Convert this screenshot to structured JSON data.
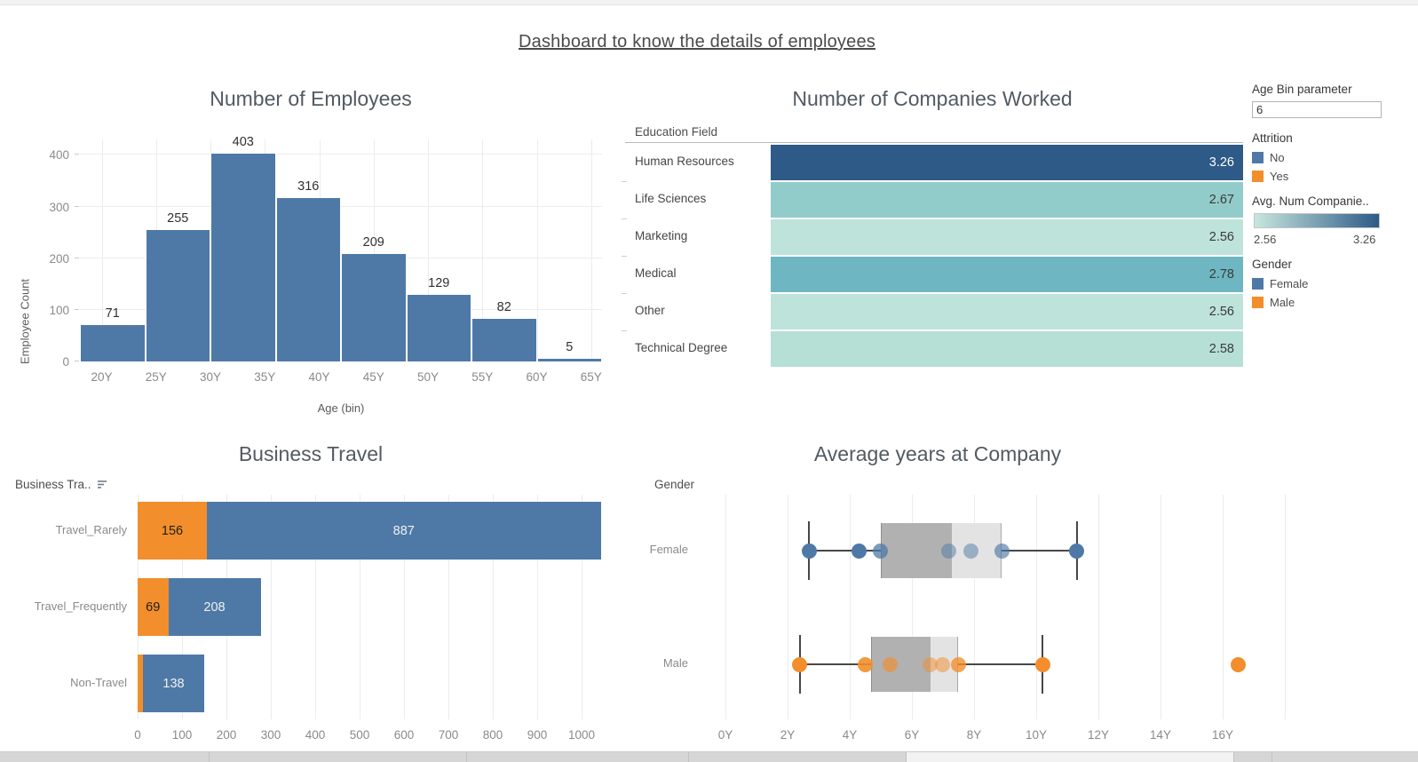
{
  "window": {
    "title": "Dashboard to know the details of employees"
  },
  "palette": {
    "blue": "#4e79a7",
    "orange": "#f28e2b",
    "grid": "#ececec",
    "axis_text": "#8a8a8a",
    "box_dark": "#b1b1b1",
    "box_light": "#e3e3e3"
  },
  "sidebar": {
    "age_bin": {
      "label": "Age Bin parameter",
      "value": "6"
    },
    "attrition": {
      "title": "Attrition",
      "items": [
        {
          "label": "No",
          "color": "#4e79a7"
        },
        {
          "label": "Yes",
          "color": "#f28e2b"
        }
      ]
    },
    "avg_num": {
      "title": "Avg. Num Companie..",
      "min_label": "2.56",
      "max_label": "3.26",
      "gradient_from": "#c7e7de",
      "gradient_to": "#2d5a87"
    },
    "gender": {
      "title": "Gender",
      "items": [
        {
          "label": "Female",
          "color": "#4e79a7"
        },
        {
          "label": "Male",
          "color": "#f28e2b"
        }
      ]
    }
  },
  "chart_data": [
    {
      "type": "bar",
      "title": "Number of Employees",
      "xlabel": "Age (bin)",
      "ylabel": "Employee Count",
      "bin_start": 18,
      "bin_width": 6,
      "values": [
        71,
        255,
        403,
        316,
        209,
        129,
        82,
        5
      ],
      "x_domain": [
        18,
        66
      ],
      "x_tick_years": [
        20,
        25,
        30,
        35,
        40,
        45,
        50,
        55,
        60,
        65
      ],
      "x_tick_labels": [
        "20Y",
        "25Y",
        "30Y",
        "35Y",
        "40Y",
        "45Y",
        "50Y",
        "55Y",
        "60Y",
        "65Y"
      ],
      "y_ticks": [
        0,
        100,
        200,
        300,
        400
      ],
      "ylim": [
        0,
        430
      ],
      "bar_color": "#4e79a7",
      "grid": true
    },
    {
      "type": "bar",
      "title": "Number of Companies Worked",
      "row_header": "Education Field",
      "note": "all bars full-length, colored by average value",
      "rows": [
        {
          "label": "Human Resources",
          "value": "3.26",
          "color": "#2d5a87",
          "text_color": "#ffffff"
        },
        {
          "label": "Life Sciences",
          "value": "2.67",
          "color": "#92ccca",
          "text_color": "#3a3a3a"
        },
        {
          "label": "Marketing",
          "value": "2.56",
          "color": "#bee3da",
          "text_color": "#3a3a3a"
        },
        {
          "label": "Medical",
          "value": "2.78",
          "color": "#6eb7c2",
          "text_color": "#3a3a3a"
        },
        {
          "label": "Other",
          "value": "2.56",
          "color": "#bee3da",
          "text_color": "#3a3a3a"
        },
        {
          "label": "Technical Degree",
          "value": "2.58",
          "color": "#b6dfd6",
          "text_color": "#3a3a3a"
        }
      ]
    },
    {
      "type": "bar",
      "title": "Business Travel",
      "row_header": "Business Tra..",
      "categories": [
        "Travel_Rarely",
        "Travel_Frequently",
        "Non-Travel"
      ],
      "series": [
        {
          "name": "Yes",
          "color": "#f28e2b",
          "values": [
            156,
            69,
            12
          ],
          "labels": [
            "156",
            "69",
            ""
          ],
          "label_color": "#1e1e1e"
        },
        {
          "name": "No",
          "color": "#4e79a7",
          "values": [
            887,
            208,
            138
          ],
          "labels": [
            "887",
            "208",
            "138"
          ],
          "label_color": "#f0f0f0"
        }
      ],
      "x_ticks": [
        0,
        100,
        200,
        300,
        400,
        500,
        600,
        700,
        800,
        900,
        1000
      ],
      "xlim": [
        0,
        1070
      ],
      "grid": true
    },
    {
      "type": "boxplot",
      "title": "Average years at Company",
      "row_header": "Gender",
      "x_domain": [
        -0.77,
        18.37
      ],
      "x_grid_years": [
        0,
        2,
        4,
        6,
        8,
        10,
        12,
        14,
        16,
        18
      ],
      "x_tick_years": [
        0,
        2,
        4,
        6,
        8,
        10,
        12,
        14,
        16
      ],
      "x_tick_labels": [
        "0Y",
        "2Y",
        "4Y",
        "6Y",
        "8Y",
        "10Y",
        "12Y",
        "14Y",
        "16Y"
      ],
      "box_fill_left": "#b1b1b1",
      "box_fill_right": "#e3e3e3",
      "rows": [
        {
          "label": "Female",
          "color": "#4e79a7",
          "whisker_min": 2.7,
          "q1": 5.0,
          "median": 7.3,
          "q3": 8.9,
          "whisker_max": 11.3,
          "points": [
            {
              "x": 2.7,
              "opacity": 1
            },
            {
              "x": 4.3,
              "opacity": 1
            },
            {
              "x": 5.0,
              "opacity": 0.75
            },
            {
              "x": 7.2,
              "opacity": 0.5
            },
            {
              "x": 7.9,
              "opacity": 0.5
            },
            {
              "x": 8.9,
              "opacity": 0.65
            },
            {
              "x": 11.3,
              "opacity": 1
            }
          ]
        },
        {
          "label": "Male",
          "color": "#f28e2b",
          "whisker_min": 2.4,
          "q1": 4.7,
          "median": 6.6,
          "q3": 7.5,
          "whisker_max": 10.2,
          "points": [
            {
              "x": 2.4,
              "opacity": 1
            },
            {
              "x": 4.5,
              "opacity": 0.9
            },
            {
              "x": 5.3,
              "opacity": 0.65
            },
            {
              "x": 6.6,
              "opacity": 0.5
            },
            {
              "x": 7.0,
              "opacity": 0.5
            },
            {
              "x": 7.5,
              "opacity": 0.8
            },
            {
              "x": 10.2,
              "opacity": 1
            },
            {
              "x": 16.5,
              "opacity": 1
            }
          ]
        }
      ]
    }
  ]
}
